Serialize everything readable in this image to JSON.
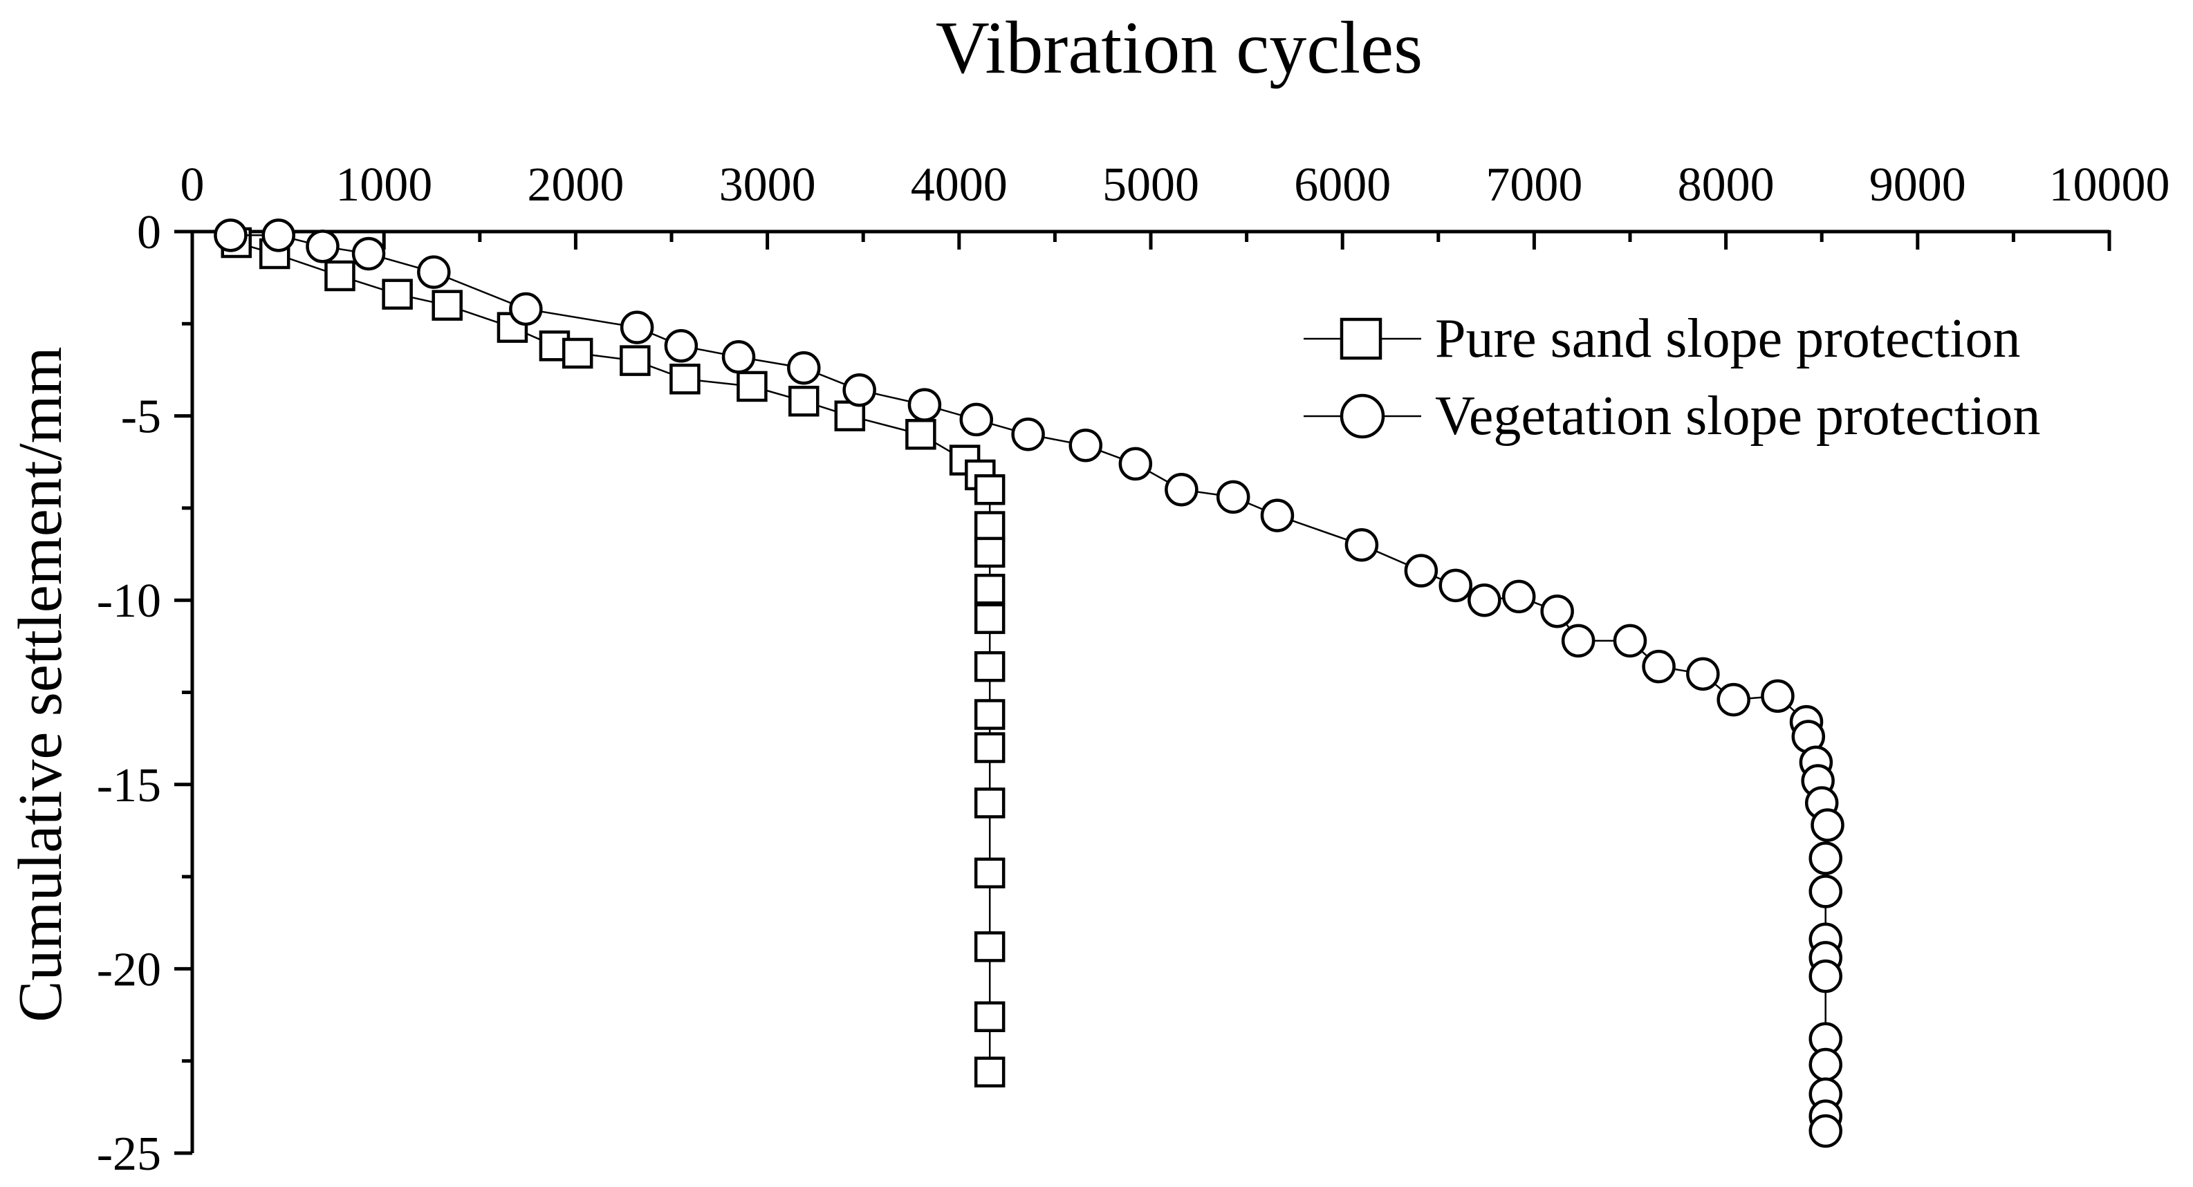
{
  "chart_data": {
    "type": "scatter",
    "title": "Vibration cycles",
    "xlabel": "Vibration cycles",
    "ylabel": "Cumulative settlement/mm",
    "xlim": [
      0,
      10000
    ],
    "ylim": [
      -25,
      0
    ],
    "x_axis_position": "top",
    "x_ticks": [
      0,
      1000,
      2000,
      3000,
      4000,
      5000,
      6000,
      7000,
      8000,
      9000,
      10000
    ],
    "x_tick_labels": [
      "0",
      "1000",
      "2000",
      "3000",
      "4000",
      "5000",
      "6000",
      "7000",
      "8000",
      "9000",
      "10000"
    ],
    "y_ticks": [
      0,
      -5,
      -10,
      -15,
      -20,
      -25
    ],
    "y_tick_labels": [
      "0",
      "-5",
      "-10",
      "-15",
      "-20",
      "-25"
    ],
    "legend_position": "top-right",
    "series": [
      {
        "name": "Pure sand slope protection",
        "marker": "square",
        "points": [
          [
            230,
            -0.3
          ],
          [
            430,
            -0.6
          ],
          [
            770,
            -1.2
          ],
          [
            1070,
            -1.7
          ],
          [
            1330,
            -2.0
          ],
          [
            1670,
            -2.6
          ],
          [
            1890,
            -3.1
          ],
          [
            2010,
            -3.3
          ],
          [
            2310,
            -3.5
          ],
          [
            2570,
            -4.0
          ],
          [
            2920,
            -4.2
          ],
          [
            3190,
            -4.6
          ],
          [
            3430,
            -5.0
          ],
          [
            3800,
            -5.5
          ],
          [
            4030,
            -6.2
          ],
          [
            4110,
            -6.6
          ],
          [
            4160,
            -7.0
          ],
          [
            4160,
            -8.0
          ],
          [
            4160,
            -8.7
          ],
          [
            4160,
            -9.7
          ],
          [
            4160,
            -10.5
          ],
          [
            4160,
            -11.8
          ],
          [
            4160,
            -13.1
          ],
          [
            4160,
            -14.0
          ],
          [
            4160,
            -15.5
          ],
          [
            4160,
            -17.4
          ],
          [
            4160,
            -19.4
          ],
          [
            4160,
            -21.3
          ],
          [
            4160,
            -22.8
          ]
        ]
      },
      {
        "name": "Vegetation slope protection",
        "marker": "circle",
        "points": [
          [
            200,
            -0.1
          ],
          [
            450,
            -0.1
          ],
          [
            680,
            -0.4
          ],
          [
            920,
            -0.6
          ],
          [
            1260,
            -1.1
          ],
          [
            1740,
            -2.1
          ],
          [
            2320,
            -2.6
          ],
          [
            2550,
            -3.1
          ],
          [
            2850,
            -3.4
          ],
          [
            3190,
            -3.7
          ],
          [
            3480,
            -4.3
          ],
          [
            3820,
            -4.7
          ],
          [
            4090,
            -5.1
          ],
          [
            4360,
            -5.5
          ],
          [
            4660,
            -5.8
          ],
          [
            4920,
            -6.3
          ],
          [
            5160,
            -7.0
          ],
          [
            5430,
            -7.2
          ],
          [
            5660,
            -7.7
          ],
          [
            6100,
            -8.5
          ],
          [
            6410,
            -9.2
          ],
          [
            6590,
            -9.6
          ],
          [
            6740,
            -10.0
          ],
          [
            6920,
            -9.9
          ],
          [
            7120,
            -10.3
          ],
          [
            7230,
            -11.1
          ],
          [
            7500,
            -11.1
          ],
          [
            7650,
            -11.8
          ],
          [
            7880,
            -12.0
          ],
          [
            8040,
            -12.7
          ],
          [
            8270,
            -12.6
          ],
          [
            8420,
            -13.3
          ],
          [
            8430,
            -13.7
          ],
          [
            8470,
            -14.4
          ],
          [
            8480,
            -14.9
          ],
          [
            8500,
            -15.5
          ],
          [
            8530,
            -16.1
          ],
          [
            8520,
            -17.0
          ],
          [
            8520,
            -17.9
          ],
          [
            8520,
            -19.2
          ],
          [
            8520,
            -19.7
          ],
          [
            8520,
            -20.2
          ],
          [
            8520,
            -21.9
          ],
          [
            8520,
            -22.6
          ],
          [
            8520,
            -23.4
          ],
          [
            8520,
            -24.0
          ],
          [
            8520,
            -24.4
          ]
        ]
      }
    ]
  }
}
